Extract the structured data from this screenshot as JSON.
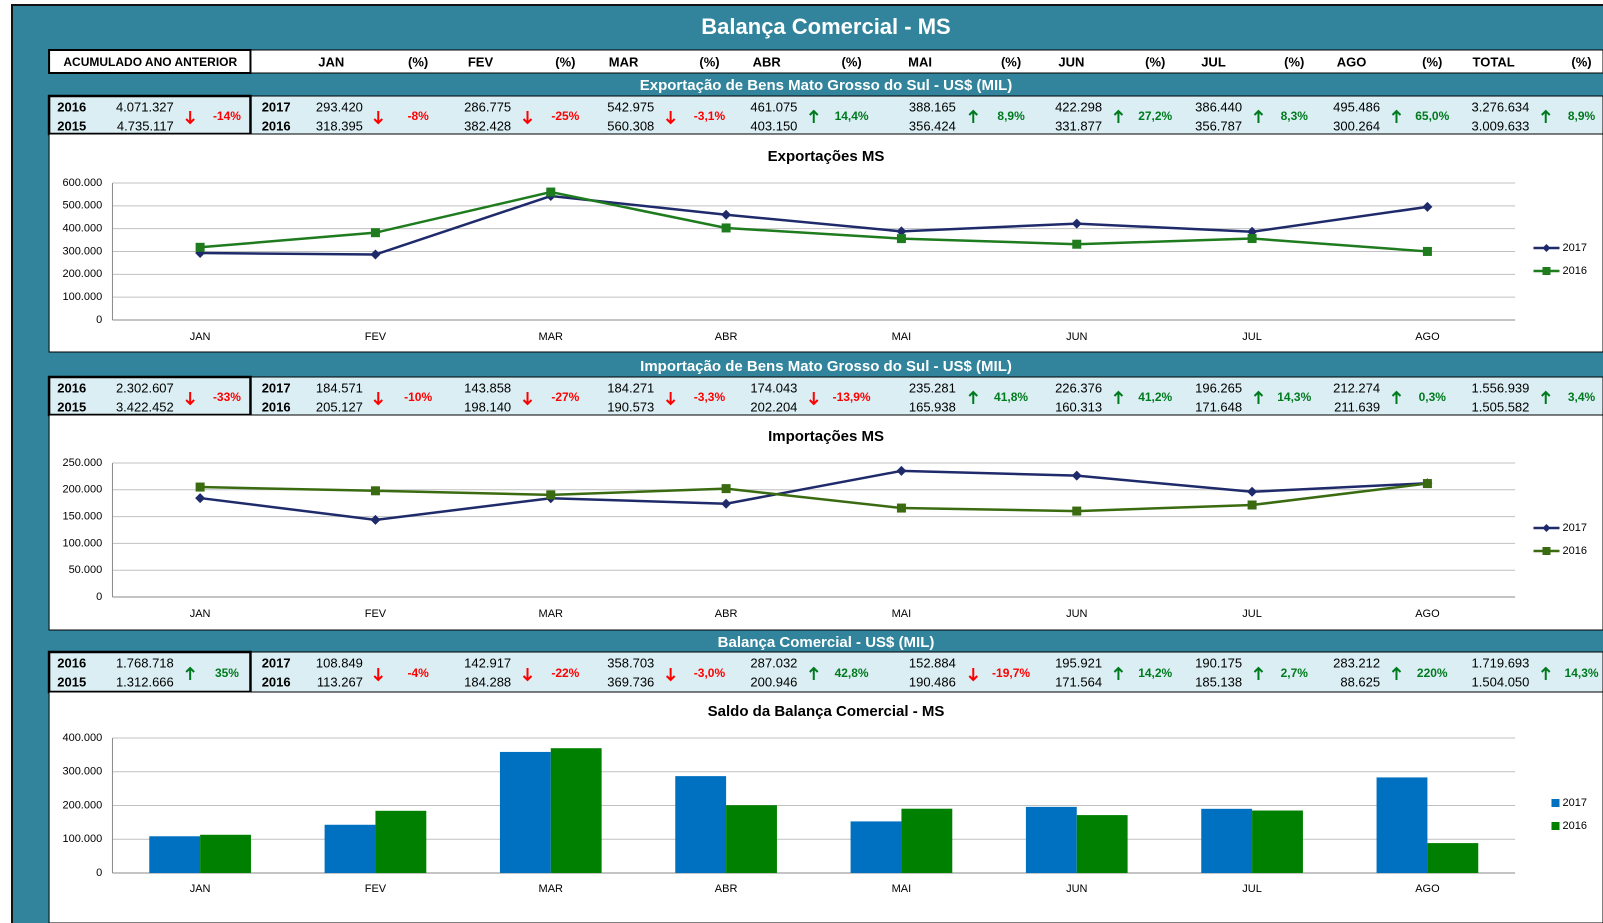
{
  "title": "Balança Comercial - MS",
  "header": [
    "ACUMULADO ANO ANTERIOR",
    "JAN",
    "(%)",
    "FEV",
    "(%)",
    "MAR",
    "(%)",
    "ABR",
    "(%)",
    "MAI",
    "(%)",
    "JUN",
    "(%)",
    "JUL",
    "(%)",
    "AGO",
    "(%)",
    "TOTAL",
    "(%)"
  ],
  "sections": [
    {
      "heading": "Exportação de Bens Mato Grosso do Sul - US$ (MIL)",
      "accumulated": {
        "years": [
          "2016",
          "2015"
        ],
        "values": [
          "4.071.327",
          "4.735.117"
        ],
        "change": "-14%",
        "direction": "down"
      },
      "years": [
        "2017",
        "2016"
      ],
      "cells": [
        {
          "values": [
            "293.420",
            "318.395"
          ],
          "change": "-8%",
          "direction": "down"
        },
        {
          "values": [
            "286.775",
            "382.428"
          ],
          "change": "-25%",
          "direction": "down"
        },
        {
          "values": [
            "542.975",
            "560.308"
          ],
          "change": "-3,1%",
          "direction": "down"
        },
        {
          "values": [
            "461.075",
            "403.150"
          ],
          "change": "14,4%",
          "direction": "up"
        },
        {
          "values": [
            "388.165",
            "356.424"
          ],
          "change": "8,9%",
          "direction": "up"
        },
        {
          "values": [
            "422.298",
            "331.877"
          ],
          "change": "27,2%",
          "direction": "up"
        },
        {
          "values": [
            "386.440",
            "356.787"
          ],
          "change": "8,3%",
          "direction": "up"
        },
        {
          "values": [
            "495.486",
            "300.264"
          ],
          "change": "65,0%",
          "direction": "up"
        },
        {
          "values": [
            "3.276.634",
            "3.009.633"
          ],
          "change": "8,9%",
          "direction": "up"
        }
      ]
    },
    {
      "heading": "Importação de Bens Mato Grosso do Sul - US$ (MIL)",
      "accumulated": {
        "years": [
          "2016",
          "2015"
        ],
        "values": [
          "2.302.607",
          "3.422.452"
        ],
        "change": "-33%",
        "direction": "down"
      },
      "years": [
        "2017",
        "2016"
      ],
      "cells": [
        {
          "values": [
            "184.571",
            "205.127"
          ],
          "change": "-10%",
          "direction": "down"
        },
        {
          "values": [
            "143.858",
            "198.140"
          ],
          "change": "-27%",
          "direction": "down"
        },
        {
          "values": [
            "184.271",
            "190.573"
          ],
          "change": "-3,3%",
          "direction": "down"
        },
        {
          "values": [
            "174.043",
            "202.204"
          ],
          "change": "-13,9%",
          "direction": "down"
        },
        {
          "values": [
            "235.281",
            "165.938"
          ],
          "change": "41,8%",
          "direction": "up"
        },
        {
          "values": [
            "226.376",
            "160.313"
          ],
          "change": "41,2%",
          "direction": "up"
        },
        {
          "values": [
            "196.265",
            "171.648"
          ],
          "change": "14,3%",
          "direction": "up"
        },
        {
          "values": [
            "212.274",
            "211.639"
          ],
          "change": "0,3%",
          "direction": "up"
        },
        {
          "values": [
            "1.556.939",
            "1.505.582"
          ],
          "change": "3,4%",
          "direction": "up"
        }
      ]
    },
    {
      "heading": "Balança Comercial - US$ (MIL)",
      "accumulated": {
        "years": [
          "2016",
          "2015"
        ],
        "values": [
          "1.768.718",
          "1.312.666"
        ],
        "change": "35%",
        "direction": "up"
      },
      "years": [
        "2017",
        "2016"
      ],
      "cells": [
        {
          "values": [
            "108.849",
            "113.267"
          ],
          "change": "-4%",
          "direction": "down"
        },
        {
          "values": [
            "142.917",
            "184.288"
          ],
          "change": "-22%",
          "direction": "down"
        },
        {
          "values": [
            "358.703",
            "369.736"
          ],
          "change": "-3,0%",
          "direction": "down"
        },
        {
          "values": [
            "287.032",
            "200.946"
          ],
          "change": "42,8%",
          "direction": "up"
        },
        {
          "values": [
            "152.884",
            "190.486"
          ],
          "change": "-19,7%",
          "direction": "down"
        },
        {
          "values": [
            "195.921",
            "171.564"
          ],
          "change": "14,2%",
          "direction": "up"
        },
        {
          "values": [
            "190.175",
            "185.138"
          ],
          "change": "2,7%",
          "direction": "up"
        },
        {
          "values": [
            "283.212",
            "88.625"
          ],
          "change": "220%",
          "direction": "up"
        },
        {
          "values": [
            "1.719.693",
            "1.504.050"
          ],
          "change": "14,3%",
          "direction": "up"
        }
      ]
    }
  ],
  "chart_data": [
    {
      "type": "line",
      "title": "Exportações MS",
      "categories": [
        "JAN",
        "FEV",
        "MAR",
        "ABR",
        "MAI",
        "JUN",
        "JUL",
        "AGO"
      ],
      "series": [
        {
          "name": "2017",
          "color": "#1f2a6b",
          "marker": "diamond",
          "values": [
            293420,
            286775,
            542975,
            461075,
            388165,
            422298,
            386440,
            495486
          ]
        },
        {
          "name": "2016",
          "color": "#1e7b1e",
          "marker": "square",
          "values": [
            318395,
            382428,
            560308,
            403150,
            356424,
            331877,
            356787,
            300264
          ]
        }
      ],
      "ylim": [
        0,
        600000
      ],
      "yticks": [
        0,
        {
          "value": 100000,
          "label": "100.000"
        },
        {
          "value": 200000,
          "label": "200.000"
        },
        {
          "value": 300000,
          "label": "300.000"
        },
        {
          "value": 400000,
          "label": "400.000"
        },
        {
          "value": 500000,
          "label": "500.000"
        },
        {
          "value": 600000,
          "label": "600.000"
        }
      ],
      "grid": true,
      "legend": "right"
    },
    {
      "type": "line",
      "title": "Importações MS",
      "categories": [
        "JAN",
        "FEV",
        "MAR",
        "ABR",
        "MAI",
        "JUN",
        "JUL",
        "AGO"
      ],
      "series": [
        {
          "name": "2017",
          "color": "#1f2a6b",
          "marker": "diamond",
          "values": [
            184571,
            143858,
            184271,
            174043,
            235281,
            226376,
            196265,
            212274
          ]
        },
        {
          "name": "2016",
          "color": "#3a6b10",
          "marker": "square",
          "values": [
            205127,
            198140,
            190573,
            202204,
            165938,
            160313,
            171648,
            211639
          ]
        }
      ],
      "ylim": [
        0,
        250000
      ],
      "yticks": [
        0,
        {
          "value": 50000,
          "label": "50.000"
        },
        {
          "value": 100000,
          "label": "100.000"
        },
        {
          "value": 150000,
          "label": "150.000"
        },
        {
          "value": 200000,
          "label": "200.000"
        },
        {
          "value": 250000,
          "label": "250.000"
        }
      ],
      "grid": true,
      "legend": "right"
    },
    {
      "type": "bar",
      "title": "Saldo da Balança Comercial - MS",
      "categories": [
        "JAN",
        "FEV",
        "MAR",
        "ABR",
        "MAI",
        "JUN",
        "JUL",
        "AGO"
      ],
      "series": [
        {
          "name": "2017",
          "color": "#0070c0",
          "values": [
            108849,
            142917,
            358703,
            287032,
            152884,
            195921,
            190175,
            283212
          ]
        },
        {
          "name": "2016",
          "color": "#008000",
          "values": [
            113267,
            184288,
            369736,
            200946,
            190486,
            171564,
            185138,
            88625
          ]
        }
      ],
      "ylim": [
        0,
        400000
      ],
      "yticks": [
        0,
        {
          "value": 100000,
          "label": "100.000"
        },
        {
          "value": 200000,
          "label": "200.000"
        },
        {
          "value": 300000,
          "label": "300.000"
        },
        {
          "value": 400000,
          "label": "400.000"
        }
      ],
      "grid": true,
      "legend": "right"
    }
  ]
}
